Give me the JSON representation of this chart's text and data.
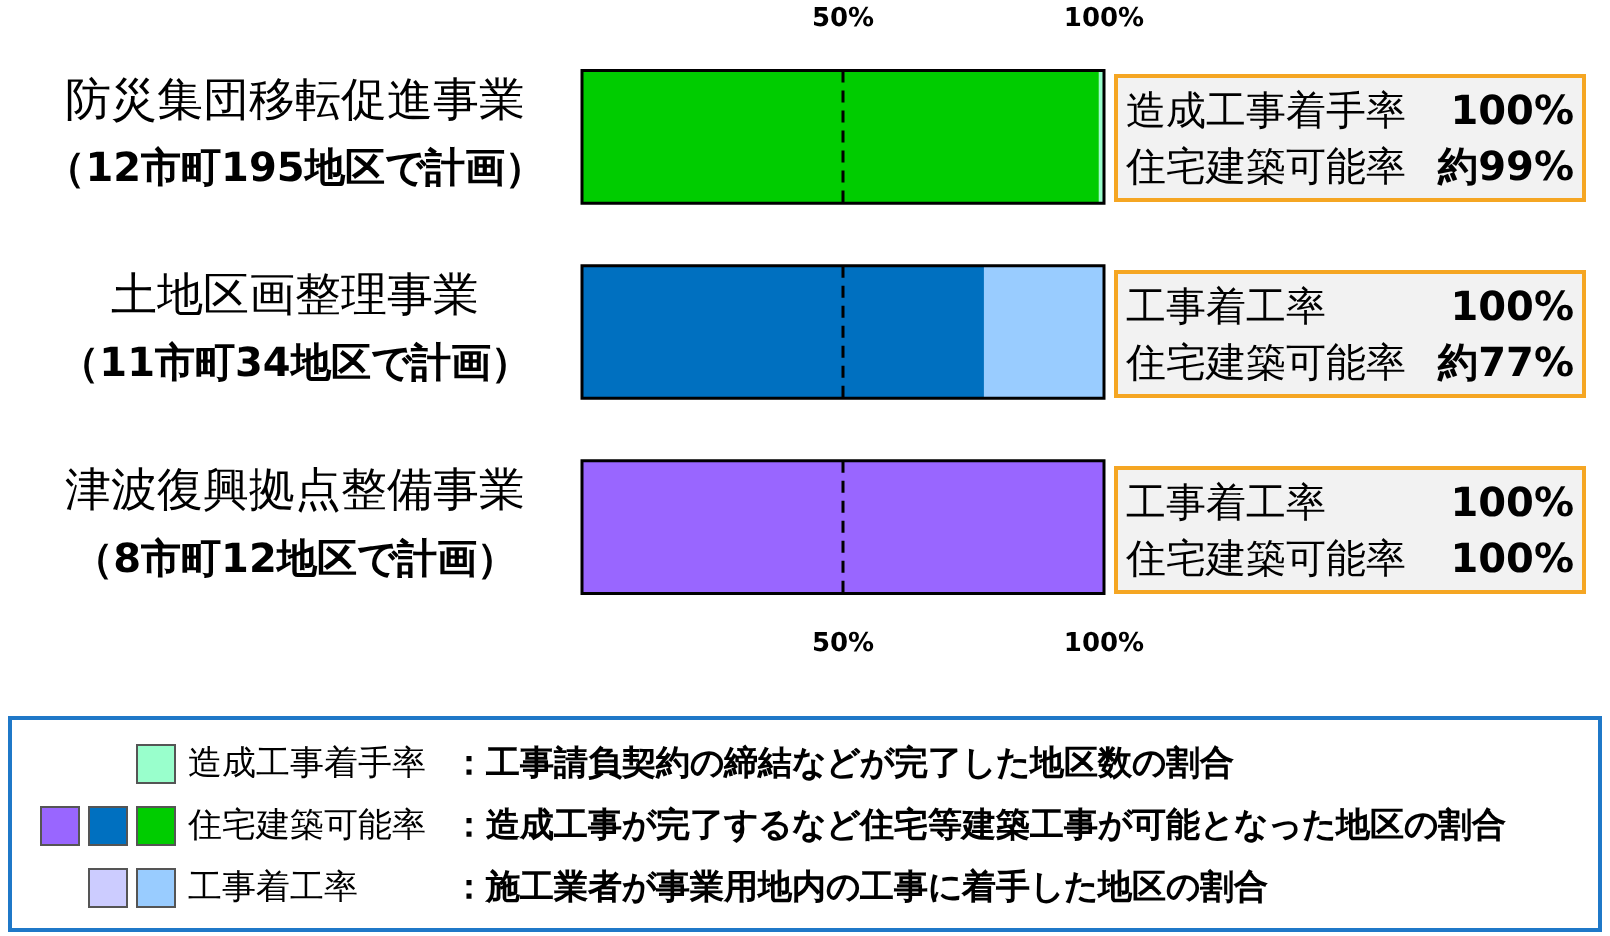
{
  "chart_data": {
    "type": "bar",
    "orientation": "horizontal",
    "stacked": true,
    "categories": [
      "防災集団移転促進事業（12市町195地区で計画）",
      "土地区画整理事業（11市町34地区で計画）",
      "津波復興拠点整備事業（8市町12地区で計画）"
    ],
    "series": [
      {
        "name": "住宅建築可能率",
        "colors": [
          "#00cc00",
          "#0070c0",
          "#9966ff"
        ],
        "values": [
          99,
          77,
          100
        ]
      },
      {
        "name": "造成工事着手率",
        "colors": [
          "#99ffcc",
          null,
          null
        ],
        "values": [
          1,
          null,
          null
        ]
      },
      {
        "name": "工事着工率",
        "colors": [
          null,
          "#99ccff",
          "#ccccff"
        ],
        "values": [
          null,
          23,
          0
        ]
      }
    ],
    "xlim": [
      0,
      100
    ],
    "xticks": [
      {
        "value": 50,
        "label": "50%"
      },
      {
        "value": 100,
        "label": "100%"
      }
    ],
    "x2lim": [
      0,
      100
    ],
    "x2ticks": [
      {
        "value": 50,
        "label": "50%"
      },
      {
        "value": 100,
        "label": "100%"
      }
    ],
    "ref_lines": [
      {
        "axis": "x",
        "value": 50,
        "label": null,
        "color": "#000000",
        "line_style": "dashed"
      }
    ],
    "grid": false,
    "legend": "bottom",
    "annotations": [
      "造成工事着手率 100%",
      "住宅建築可能率 約99%",
      "工事着工率 100%",
      "住宅建築可能率 約77%",
      "工事着工率 100%",
      "住宅建築可能率 100%",
      "：工事請負契約の締結などが完了した地区数の割合",
      "：造成工事が完了するなど住宅等建築工事が可能となった地区の割合",
      "：施工業者が事業用地内の工事に着手した地区の割合"
    ]
  }
}
